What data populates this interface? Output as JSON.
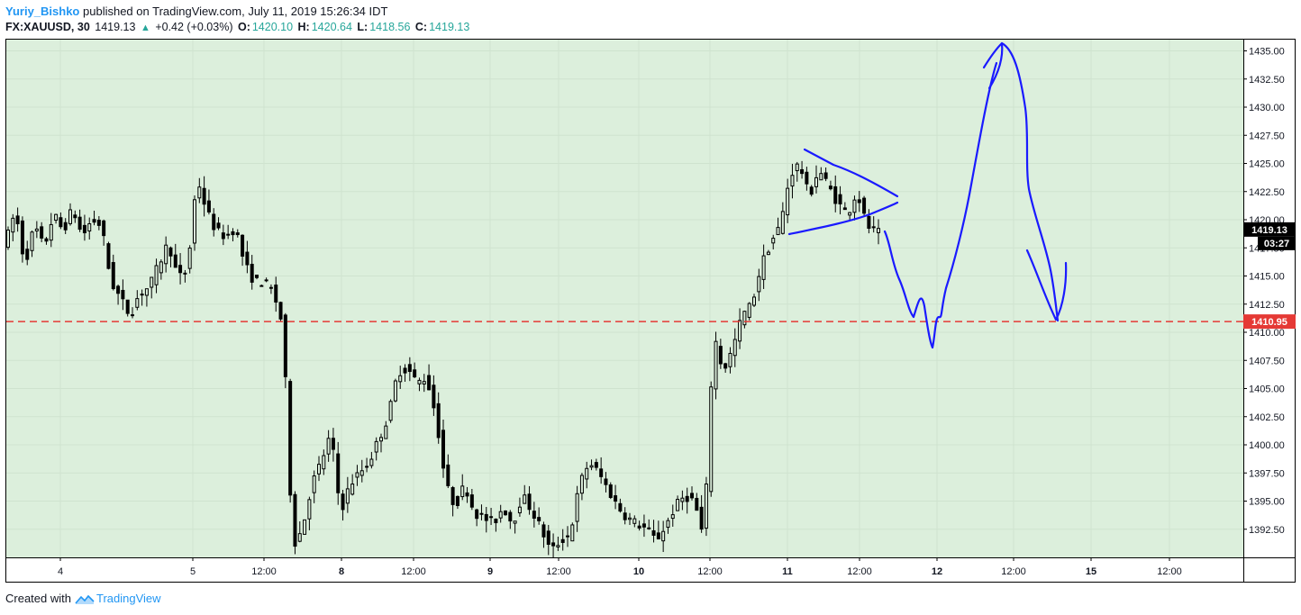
{
  "header": {
    "author": "Yuriy_Bishko",
    "published_text": "published on TradingView.com, July 11, 2019 15:26:34 IDT"
  },
  "symbol_line": {
    "symbol": "FX:XAUUSD, 30",
    "last": "1419.13",
    "change": "+0.42 (+0.03%)",
    "open_label": "O:",
    "open": "1420.10",
    "high_label": "H:",
    "high": "1420.64",
    "low_label": "L:",
    "low": "1418.56",
    "close_label": "C:",
    "close": "1419.13",
    "up_arrow_icon": "triangle-up-icon"
  },
  "footer": {
    "created_with": "Created with",
    "brand": "TradingView",
    "logo_icon": "tradingview-logo-icon"
  },
  "colors": {
    "plot_background": "#dcefdc",
    "candle": "#000000",
    "support_line": "#e53935",
    "annotation": "#1a1aff",
    "price_tag": "#000000",
    "support_tag": "#e53935"
  },
  "chart_data": {
    "type": "candlestick",
    "symbol": "FX:XAUUSD",
    "interval_minutes": 30,
    "y_axis": {
      "range": [
        1390.0,
        1436.0
      ],
      "ticks": [
        "1392.50",
        "1395.00",
        "1397.50",
        "1400.00",
        "1402.50",
        "1405.00",
        "1407.50",
        "1410.00",
        "1412.50",
        "1415.00",
        "1417.50",
        "1420.00",
        "1422.50",
        "1425.00",
        "1427.50",
        "1430.00",
        "1432.50",
        "1435.00"
      ],
      "position": "right"
    },
    "x_axis": {
      "tick_labels": [
        "4",
        "5",
        "12:00",
        "8",
        "12:00",
        "9",
        "12:00",
        "10",
        "12:00",
        "11",
        "12:00",
        "12",
        "12:00",
        "15",
        "12:00"
      ],
      "bold_labels": [
        "8",
        "9",
        "10",
        "11",
        "12",
        "15"
      ]
    },
    "last_price": {
      "value": 1419.13,
      "label": "1419.13",
      "countdown": "03:27"
    },
    "support_level": {
      "value": 1410.95,
      "label": "1410.95"
    },
    "price_path": [
      [
        0,
        1418.0
      ],
      [
        2,
        1420.8
      ],
      [
        4,
        1416.0
      ],
      [
        6,
        1419.5
      ],
      [
        8,
        1417.5
      ],
      [
        10,
        1420.5
      ],
      [
        12,
        1419.0
      ],
      [
        14,
        1421.0
      ],
      [
        16,
        1418.5
      ],
      [
        18,
        1420.0
      ],
      [
        20,
        1419.5
      ],
      [
        22,
        1414.5
      ],
      [
        24,
        1413.0
      ],
      [
        26,
        1411.5
      ],
      [
        28,
        1413.5
      ],
      [
        30,
        1414.0
      ],
      [
        32,
        1416.0
      ],
      [
        34,
        1418.0
      ],
      [
        36,
        1414.8
      ],
      [
        38,
        1415.5
      ],
      [
        40,
        1423.8
      ],
      [
        42,
        1420.8
      ],
      [
        44,
        1419.0
      ],
      [
        46,
        1418.5
      ],
      [
        48,
        1419.3
      ],
      [
        50,
        1416.0
      ],
      [
        52,
        1414.5
      ],
      [
        54,
        1414.5
      ],
      [
        56,
        1413.5
      ],
      [
        58,
        1410.5
      ],
      [
        60,
        1391.0
      ],
      [
        62,
        1392.5
      ],
      [
        64,
        1396.5
      ],
      [
        66,
        1398.5
      ],
      [
        68,
        1401.0
      ],
      [
        70,
        1394.0
      ],
      [
        72,
        1396.5
      ],
      [
        74,
        1397.5
      ],
      [
        76,
        1398.5
      ],
      [
        78,
        1400.5
      ],
      [
        80,
        1402.5
      ],
      [
        82,
        1406.5
      ],
      [
        84,
        1406.8
      ],
      [
        86,
        1405.5
      ],
      [
        88,
        1406.0
      ],
      [
        90,
        1402.5
      ],
      [
        92,
        1396.5
      ],
      [
        94,
        1394.5
      ],
      [
        96,
        1396.5
      ],
      [
        98,
        1394.0
      ],
      [
        100,
        1393.5
      ],
      [
        102,
        1393.0
      ],
      [
        104,
        1394.5
      ],
      [
        106,
        1393.0
      ],
      [
        108,
        1395.5
      ],
      [
        110,
        1394.2
      ],
      [
        112,
        1392.5
      ],
      [
        114,
        1390.5
      ],
      [
        116,
        1391.5
      ],
      [
        118,
        1392.0
      ],
      [
        120,
        1396.5
      ],
      [
        122,
        1398.5
      ],
      [
        124,
        1397.5
      ],
      [
        126,
        1396.0
      ],
      [
        128,
        1394.5
      ],
      [
        130,
        1393.5
      ],
      [
        132,
        1393.0
      ],
      [
        134,
        1392.5
      ],
      [
        136,
        1391.5
      ],
      [
        138,
        1392.8
      ],
      [
        140,
        1394.5
      ],
      [
        142,
        1395.5
      ],
      [
        144,
        1395.0
      ],
      [
        146,
        1391.5
      ],
      [
        148,
        1410.0
      ],
      [
        150,
        1406.5
      ],
      [
        152,
        1408.5
      ],
      [
        154,
        1411.5
      ],
      [
        156,
        1412.5
      ],
      [
        158,
        1416.0
      ],
      [
        160,
        1418.0
      ],
      [
        162,
        1419.5
      ],
      [
        164,
        1424.0
      ],
      [
        166,
        1425.0
      ],
      [
        168,
        1422.0
      ],
      [
        170,
        1424.5
      ],
      [
        172,
        1423.0
      ],
      [
        174,
        1421.5
      ],
      [
        176,
        1420.5
      ],
      [
        178,
        1422.5
      ],
      [
        180,
        1419.5
      ],
      [
        182,
        1418.8
      ]
    ]
  }
}
